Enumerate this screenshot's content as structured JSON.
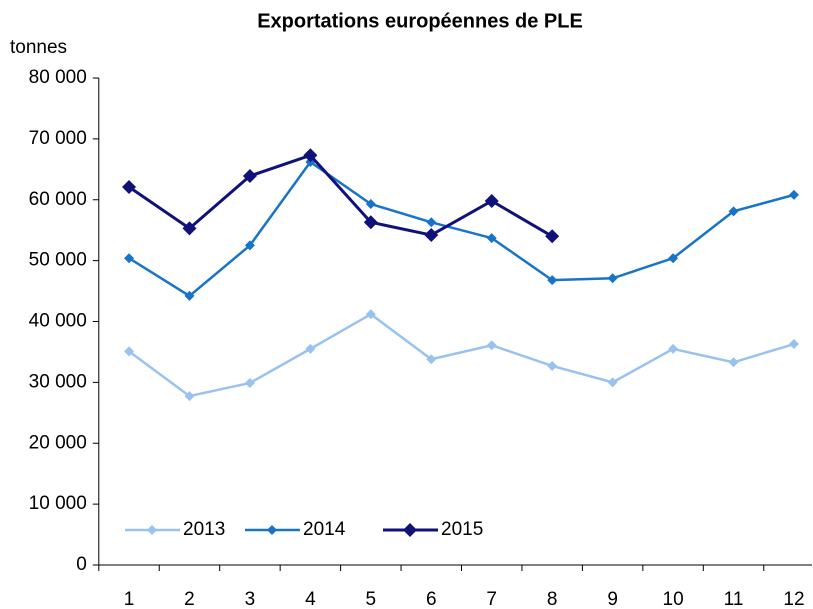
{
  "chart_data": {
    "type": "line",
    "title": "Exportations européennes de PLE",
    "ylabel": "tonnes",
    "categories": [
      "1",
      "2",
      "3",
      "4",
      "5",
      "6",
      "7",
      "8",
      "9",
      "10",
      "11",
      "12"
    ],
    "series": [
      {
        "name": "2013",
        "color": "#99c2ee",
        "values": [
          35100,
          27750,
          29900,
          35500,
          41200,
          33800,
          36100,
          32700,
          30000,
          35500,
          33300,
          36300
        ]
      },
      {
        "name": "2014",
        "color": "#1874c8",
        "values": [
          50400,
          44200,
          52500,
          66200,
          59300,
          56300,
          53700,
          46800,
          47100,
          50400,
          58100,
          60800
        ]
      },
      {
        "name": "2015",
        "color": "#10127a",
        "values": [
          62100,
          55300,
          63900,
          67300,
          56300,
          54200,
          59800,
          54000,
          null,
          null,
          null,
          null
        ]
      }
    ],
    "ylim": [
      0,
      80000
    ],
    "yticks": [
      0,
      {
        "value": 10000,
        "label": "10 000"
      },
      {
        "value": 20000,
        "label": "20 000"
      },
      {
        "value": 30000,
        "label": "30 000"
      },
      {
        "value": 40000,
        "label": "40 000"
      },
      {
        "value": 50000,
        "label": "50 000"
      },
      {
        "value": 60000,
        "label": "60 000"
      },
      {
        "value": 70000,
        "label": "70 000"
      },
      {
        "value": 80000,
        "label": "80 000"
      }
    ],
    "legend": "lower left"
  }
}
